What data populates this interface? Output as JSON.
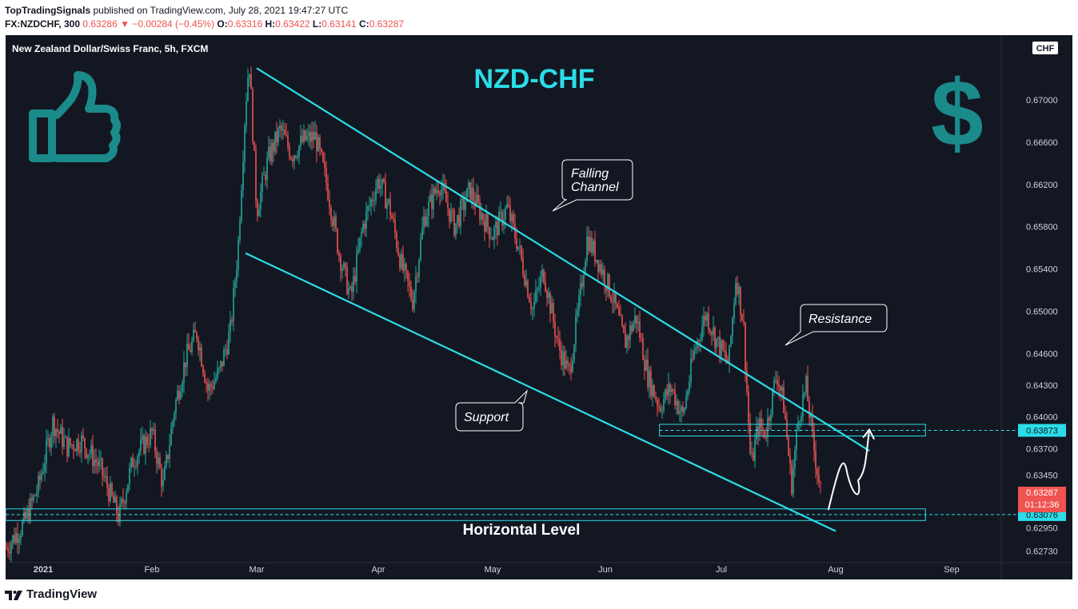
{
  "header": {
    "publisher": "TopTradingSignals",
    "published_text": "published on TradingView.com, July 28, 2021 19:47:27 UTC",
    "symbol": "FX:NZDCHF, 300",
    "last": "0.63286",
    "change": "−0.00284 (−0.45%)",
    "o_label": "O:",
    "o_value": "0.63316",
    "h_label": "H:",
    "h_value": "0.63422",
    "l_label": "L:",
    "l_value": "0.63141",
    "c_label": "C:",
    "c_value": "0.63287"
  },
  "chart_data": {
    "type": "candlestick",
    "instrument_label": "New Zealand Dollar/Swiss Franc, 5h, FXCM",
    "title": "NZD-CHF",
    "currency_badge": "CHF",
    "x_ticks": [
      "2021",
      "Feb",
      "Mar",
      "Apr",
      "May",
      "Jun",
      "Jul",
      "Aug",
      "Sep"
    ],
    "y_ticks": [
      "0.67000",
      "0.66600",
      "0.66200",
      "0.65800",
      "0.65400",
      "0.65000",
      "0.64600",
      "0.64300",
      "0.64000",
      "0.63700",
      "0.63450",
      "0.62950",
      "0.62730"
    ],
    "ylim": [
      0.6265,
      0.6745
    ],
    "price_path": [
      [
        "2021-01-01",
        0.6275
      ],
      [
        "2021-01-05",
        0.63
      ],
      [
        "2021-01-08",
        0.6335
      ],
      [
        "2021-01-11",
        0.6395
      ],
      [
        "2021-01-14",
        0.6372
      ],
      [
        "2021-01-17",
        0.6378
      ],
      [
        "2021-01-21",
        0.6352
      ],
      [
        "2021-01-25",
        0.6305
      ],
      [
        "2021-01-28",
        0.636
      ],
      [
        "2021-02-01",
        0.6385
      ],
      [
        "2021-02-04",
        0.6335
      ],
      [
        "2021-02-07",
        0.6408
      ],
      [
        "2021-02-10",
        0.6455
      ],
      [
        "2021-02-13",
        0.648
      ],
      [
        "2021-02-16",
        0.6425
      ],
      [
        "2021-02-19",
        0.6442
      ],
      [
        "2021-02-22",
        0.6482
      ],
      [
        "2021-02-24",
        0.656
      ],
      [
        "2021-02-26",
        0.6695
      ],
      [
        "2021-02-27",
        0.6738
      ],
      [
        "2021-03-01",
        0.6595
      ],
      [
        "2021-03-04",
        0.6645
      ],
      [
        "2021-03-07",
        0.6672
      ],
      [
        "2021-03-10",
        0.6648
      ],
      [
        "2021-03-13",
        0.6662
      ],
      [
        "2021-03-16",
        0.6665
      ],
      [
        "2021-03-19",
        0.6618
      ],
      [
        "2021-03-22",
        0.6555
      ],
      [
        "2021-03-25",
        0.6512
      ],
      [
        "2021-03-28",
        0.658
      ],
      [
        "2021-04-01",
        0.6625
      ],
      [
        "2021-04-04",
        0.6598
      ],
      [
        "2021-04-07",
        0.6545
      ],
      [
        "2021-04-10",
        0.651
      ],
      [
        "2021-04-13",
        0.6588
      ],
      [
        "2021-04-17",
        0.6622
      ],
      [
        "2021-04-21",
        0.658
      ],
      [
        "2021-04-25",
        0.6615
      ],
      [
        "2021-04-28",
        0.6592
      ],
      [
        "2021-05-01",
        0.6572
      ],
      [
        "2021-05-05",
        0.6598
      ],
      [
        "2021-05-08",
        0.6562
      ],
      [
        "2021-05-12",
        0.6502
      ],
      [
        "2021-05-15",
        0.6538
      ],
      [
        "2021-05-19",
        0.6468
      ],
      [
        "2021-05-22",
        0.644
      ],
      [
        "2021-05-25",
        0.6512
      ],
      [
        "2021-05-27",
        0.657
      ],
      [
        "2021-05-30",
        0.6548
      ],
      [
        "2021-06-03",
        0.6512
      ],
      [
        "2021-06-06",
        0.647
      ],
      [
        "2021-06-09",
        0.6495
      ],
      [
        "2021-06-12",
        0.6438
      ],
      [
        "2021-06-15",
        0.641
      ],
      [
        "2021-06-18",
        0.6428
      ],
      [
        "2021-06-21",
        0.64
      ],
      [
        "2021-06-24",
        0.6462
      ],
      [
        "2021-06-27",
        0.6498
      ],
      [
        "2021-06-30",
        0.647
      ],
      [
        "2021-07-03",
        0.645
      ],
      [
        "2021-07-05",
        0.6535
      ],
      [
        "2021-07-07",
        0.6488
      ],
      [
        "2021-07-09",
        0.6352
      ],
      [
        "2021-07-11",
        0.6392
      ],
      [
        "2021-07-13",
        0.6385
      ],
      [
        "2021-07-16",
        0.6442
      ],
      [
        "2021-07-18",
        0.641
      ],
      [
        "2021-07-20",
        0.6335
      ],
      [
        "2021-07-22",
        0.6402
      ],
      [
        "2021-07-24",
        0.6428
      ],
      [
        "2021-07-26",
        0.6372
      ],
      [
        "2021-07-28",
        0.6329
      ]
    ],
    "last_price": "0.63287",
    "countdown": "01:12:36",
    "levels": [
      {
        "price": "0.63873",
        "value": 0.63873,
        "label": "0.63873"
      },
      {
        "price": "0.63076",
        "value": 0.63076,
        "label": "0.63076"
      }
    ],
    "annotations": {
      "falling_channel_1": "Falling",
      "falling_channel_2": "Channel",
      "resistance": "Resistance",
      "support": "Support",
      "horizontal_level": "Horizontal Level"
    },
    "channel": {
      "upper": [
        [
          "2021-03-01",
          0.673
        ],
        [
          "2021-08-10",
          0.6368
        ]
      ],
      "lower": [
        [
          "2021-02-26",
          0.6555
        ],
        [
          "2021-08-01",
          0.6292
        ]
      ]
    },
    "zones": [
      {
        "from": "2021-06-15",
        "to": "2021-08-25",
        "top": 0.6393,
        "bottom": 0.6382
      },
      {
        "from": "2021-01-01",
        "to": "2021-08-25",
        "top": 0.6313,
        "bottom": 0.6302
      }
    ],
    "projection": [
      [
        "2021-07-30",
        0.6312
      ],
      [
        "2021-08-04",
        0.6348
      ],
      [
        "2021-08-07",
        0.634
      ],
      [
        "2021-08-10",
        0.6388
      ]
    ],
    "colors": {
      "background": "#131722",
      "up": "#26a69a",
      "down": "#ef5350",
      "channel": "#2bdde8",
      "title": "#2bdde8",
      "icon": "#1a8a8a"
    }
  },
  "footer": {
    "brand": "TradingView"
  }
}
